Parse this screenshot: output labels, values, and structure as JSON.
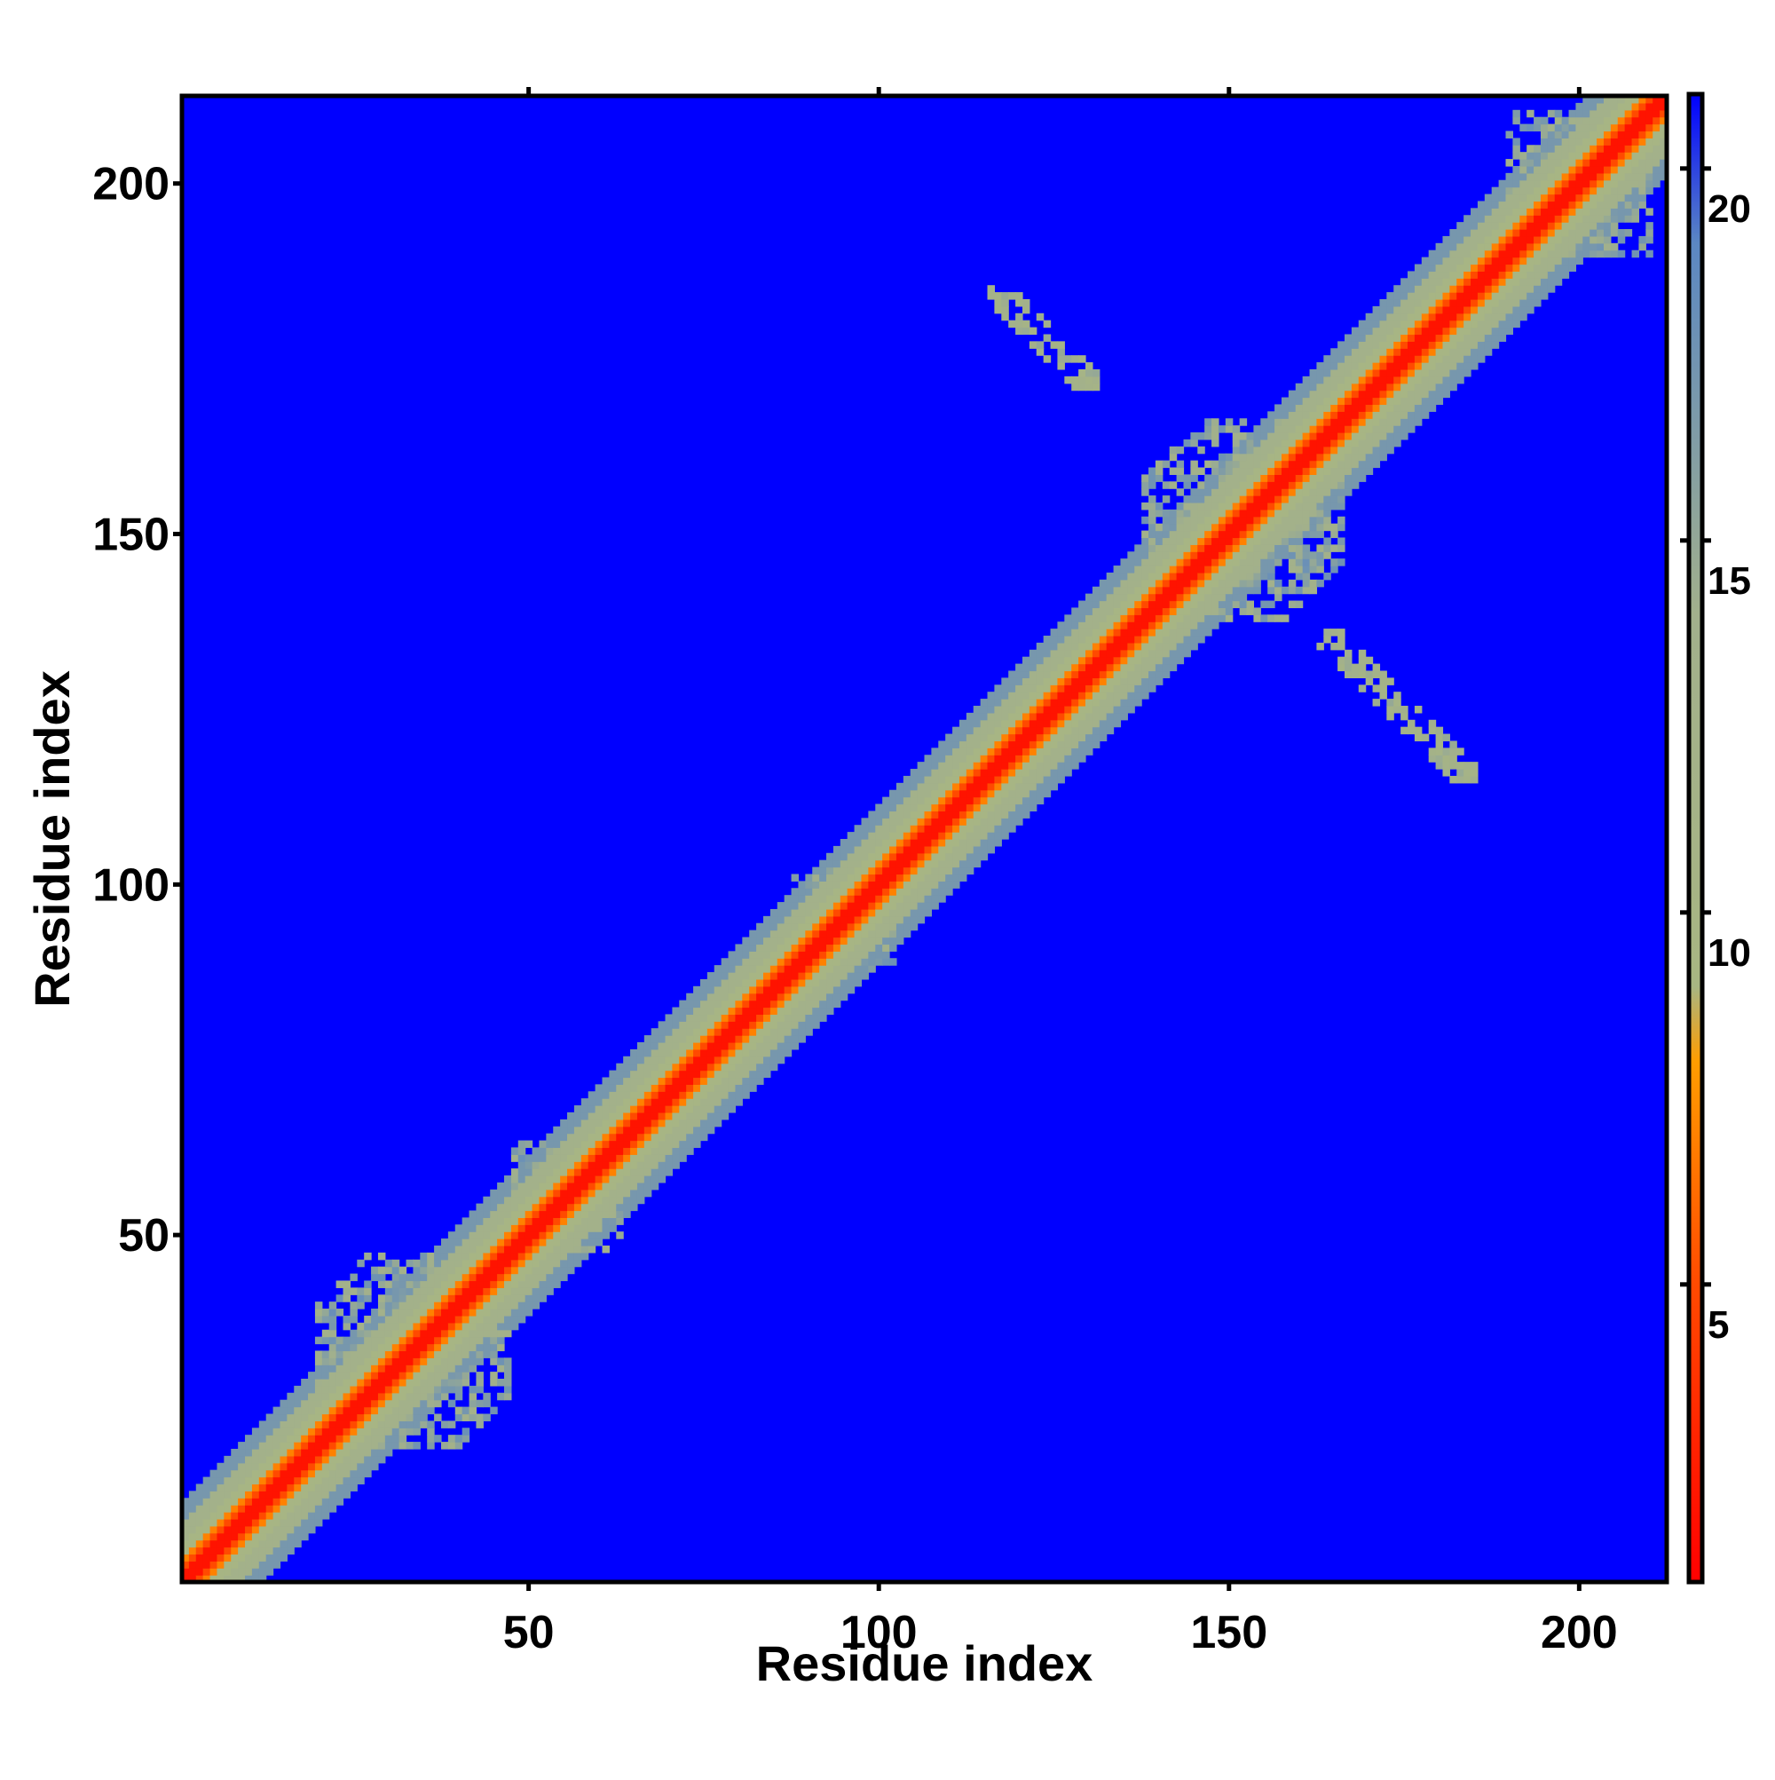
{
  "chart_data": {
    "type": "heatmap",
    "title": "",
    "xlabel": "Residue index",
    "ylabel": "Residue index",
    "xlim": [
      1,
      212
    ],
    "ylim": [
      1,
      212
    ],
    "x_ticks": [
      50,
      100,
      150,
      200
    ],
    "y_ticks": [
      50,
      100,
      150,
      200
    ],
    "x_tick_labels": [
      "50",
      "100",
      "150",
      "200"
    ],
    "y_tick_labels": [
      "50",
      "100",
      "150",
      "200"
    ],
    "colorbar": {
      "range": [
        1,
        21
      ],
      "ticks": [
        5,
        10,
        15,
        20
      ],
      "tick_labels": [
        "5",
        "10",
        "15",
        "20"
      ],
      "placement": "right",
      "stops": [
        {
          "value": 1,
          "color": "#ff0000"
        },
        {
          "value": 5,
          "color": "#ff4a00"
        },
        {
          "value": 8,
          "color": "#ff9d00"
        },
        {
          "value": 9,
          "color": "#a8b682"
        },
        {
          "value": 14,
          "color": "#a2b08c"
        },
        {
          "value": 19,
          "color": "#5b87c3"
        },
        {
          "value": 21,
          "color": "#0000ff"
        }
      ]
    },
    "cutoff_value": 21,
    "diagonal_band": [
      {
        "max_separation": 1,
        "value": 2
      },
      {
        "max_separation": 2,
        "value": 5
      },
      {
        "max_separation": 3,
        "value": 7
      },
      {
        "max_separation": 5,
        "value": 10
      },
      {
        "max_separation": 8,
        "value": 13
      },
      {
        "max_separation": 11,
        "value": 17
      }
    ],
    "off_diagonal_contacts": [
      {
        "i_range": [
          116,
          131
        ],
        "j_range": [
          171,
          185
        ],
        "value": 11,
        "description": "antiparallel strand pair"
      },
      {
        "i_range": [
          163,
          185
        ],
        "j_range": [
          115,
          136
        ],
        "value": 11,
        "description": "antiparallel strand pair"
      },
      {
        "i_range": [
          138,
          166
        ],
        "j_range": [
          138,
          166
        ],
        "value": 13,
        "description": "wide near-diagonal cluster"
      },
      {
        "i_range": [
          190,
          210
        ],
        "j_range": [
          190,
          210
        ],
        "value": 13,
        "description": "wide near-diagonal cluster"
      },
      {
        "i_range": [
          20,
          47
        ],
        "j_range": [
          20,
          47
        ],
        "value": 13,
        "description": "wide near-diagonal cluster"
      },
      {
        "i_range": [
          48,
          63
        ],
        "j_range": [
          48,
          63
        ],
        "value": 13,
        "description": "wide near-diagonal cluster"
      },
      {
        "i_range": [
          88,
          102
        ],
        "j_range": [
          88,
          102
        ],
        "value": 13,
        "description": "wide near-diagonal cluster"
      }
    ],
    "grid": false,
    "legend": "none"
  }
}
